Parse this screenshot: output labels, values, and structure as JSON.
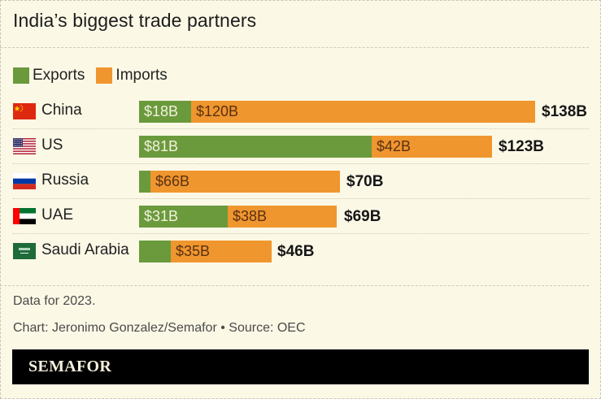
{
  "title": "India’s biggest trade partners",
  "legend": [
    {
      "label": "Exports",
      "color": "#6a9a3c"
    },
    {
      "label": "Imports",
      "color": "#f0962e"
    }
  ],
  "colors": {
    "exports": "#6a9a3c",
    "imports": "#f0962e",
    "background": "#fcf8e6"
  },
  "rows": [
    {
      "country": "China",
      "flag": "china-flag",
      "exports": 18,
      "imports": 120,
      "exports_label": "$18B",
      "imports_label": "$120B",
      "total_label": "$138B"
    },
    {
      "country": "US",
      "flag": "us-flag",
      "exports": 81,
      "imports": 42,
      "exports_label": "$81B",
      "imports_label": "$42B",
      "total_label": "$123B"
    },
    {
      "country": "Russia",
      "flag": "russia-flag",
      "exports": 4,
      "imports": 66,
      "exports_label": "",
      "imports_label": "$66B",
      "total_label": "$70B"
    },
    {
      "country": "UAE",
      "flag": "uae-flag",
      "exports": 31,
      "imports": 38,
      "exports_label": "$31B",
      "imports_label": "$38B",
      "total_label": "$69B"
    },
    {
      "country": "Saudi Arabia",
      "flag": "saudi-arabia-flag",
      "exports": 11,
      "imports": 35,
      "exports_label": "",
      "imports_label": "$35B",
      "total_label": "$46B"
    }
  ],
  "footer": {
    "note": "Data for 2023.",
    "credit": "Chart: Jeronimo Gonzalez/Semafor • Source: OEC",
    "brand": "SEMAFOR"
  },
  "chart_data": {
    "type": "bar",
    "orientation": "horizontal",
    "stacked": true,
    "title": "India’s biggest trade partners",
    "categories": [
      "China",
      "US",
      "Russia",
      "UAE",
      "Saudi Arabia"
    ],
    "series": [
      {
        "name": "Exports",
        "color": "#6a9a3c",
        "values": [
          18,
          81,
          4,
          31,
          11
        ]
      },
      {
        "name": "Imports",
        "color": "#f0962e",
        "values": [
          120,
          42,
          66,
          38,
          35
        ]
      }
    ],
    "totals": [
      138,
      123,
      70,
      69,
      46
    ],
    "unit": "USD billions",
    "legend_position": "top-left",
    "grid": false,
    "annotations": [
      "Data for 2023.",
      "Chart: Jeronimo Gonzalez/Semafor • Source: OEC"
    ]
  }
}
